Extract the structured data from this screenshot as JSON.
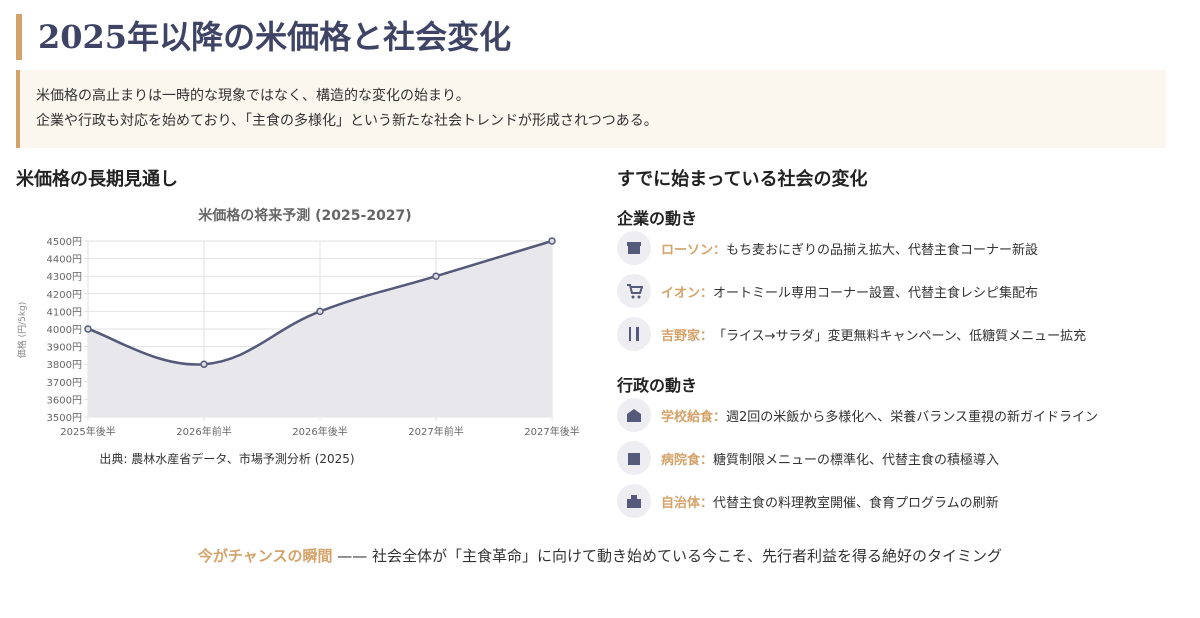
{
  "header": {
    "title": "2025年以降の米価格と社会変化"
  },
  "intro": [
    "米価格の高止まりは一時的な現象ではなく、構造的な変化の始まり。",
    "企業や行政も対応を始めており、「主食の多様化」という新たな社会トレンドが形成されつつある。"
  ],
  "left_heading": "米価格の長期見通し",
  "chart_data": {
    "type": "line",
    "title": "米価格の将来予測 (2025-2027)",
    "y_label": "価格 (円/5kg)",
    "categories": [
      "2025年後半",
      "2026年前半",
      "2026年後半",
      "2027年前半",
      "2027年後半"
    ],
    "series": [
      {
        "name": "米価格",
        "color": "#555a7a",
        "values": [
          4000,
          3800,
          4100,
          4300,
          4500
        ]
      }
    ],
    "ylim": [
      3500,
      4500
    ],
    "yticks": [
      {
        "value": 3500,
        "label": "3500円"
      },
      {
        "value": 3600,
        "label": "3600円"
      },
      {
        "value": 3700,
        "label": "3700円"
      },
      {
        "value": 3800,
        "label": "3800円"
      },
      {
        "value": 3900,
        "label": "3900円"
      },
      {
        "value": 4000,
        "label": "4000円"
      },
      {
        "value": 4100,
        "label": "4100円"
      },
      {
        "value": 4200,
        "label": "4200円"
      },
      {
        "value": 4300,
        "label": "4300円"
      },
      {
        "value": 4400,
        "label": "4400円"
      },
      {
        "value": 4500,
        "label": "4500円"
      }
    ],
    "grid": true,
    "source": "出典: 農林水産省データ、市場予測分析 (2025)"
  },
  "right_heading": "すでに始まっている社会の変化",
  "sections": [
    {
      "heading": "企業の動き",
      "items": [
        {
          "name": "ローソン：",
          "text": "もち麦おにぎりの品揃え拡大、代替主食コーナー新設"
        },
        {
          "name": "イオン：",
          "text": "オートミール専用コーナー設置、代替主食レシピ集配布"
        },
        {
          "name": "吉野家：",
          "text": "「ライス→サラダ」変更無料キャンペーン、低糖質メニュー拡充"
        }
      ]
    },
    {
      "heading": "行政の動き",
      "items": [
        {
          "name": "学校給食：",
          "text": "週2回の米飯から多様化へ、栄養バランス重視の新ガイドライン"
        },
        {
          "name": "病院食：",
          "text": "糖質制限メニューの標準化、代替主食の積極導入"
        },
        {
          "name": "自治体：",
          "text": "代替主食の料理教室開催、食育プログラムの刷新"
        }
      ]
    }
  ],
  "footer": {
    "highlight": "今がチャンスの瞬間",
    "separator": "——",
    "text": "社会全体が「主食革命」に向けて動き始めている今こそ、先行者利益を得る絶好のタイミング"
  }
}
